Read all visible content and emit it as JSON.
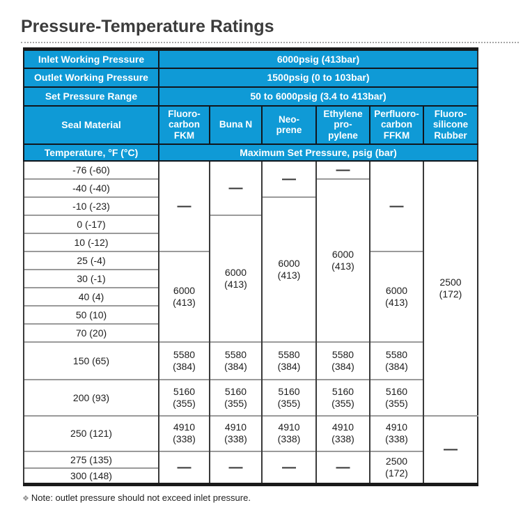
{
  "page": {
    "title": "Pressure-Temperature Ratings",
    "note_icon": "❖",
    "note": "Note: outlet pressure should not exceed inlet pressure."
  },
  "colors": {
    "header_blue": "#0f9ad6",
    "header_text": "#ffffff",
    "header_border": "#11161c",
    "outer_border": "#1a1a1a",
    "grid_vertical": "#3a3a3a",
    "grid_horizontal": "#9a9a9a",
    "title_text": "#3c3c3c",
    "body_text": "#1d1d1d"
  },
  "info_rows": [
    {
      "label": "Inlet Working Pressure",
      "value": "6000psig (413bar)"
    },
    {
      "label": "Outlet Working Pressure",
      "value": "1500psig (0 to 103bar)"
    },
    {
      "label": "Set Pressure Range",
      "value": "50 to 6000psig (3.4 to 413bar)"
    }
  ],
  "seal_header": {
    "label": "Seal Material",
    "materials": [
      "Fluoro-\ncarbon\nFKM",
      "Buna N",
      "Neo-\nprene",
      "Ethylene\npro-\npylene",
      "Perfluoro-\ncarbon\nFFKM",
      "Fluoro-\nsilicone\nRubber"
    ]
  },
  "temp_header": {
    "label": "Temperature, °F (°C)",
    "value": "Maximum Set Pressure, psig (bar)"
  },
  "body": {
    "dash": "—",
    "rows": [
      {
        "temp": "-76 (-60)",
        "cells": [
          {
            "v": "—",
            "rs": 5
          },
          {
            "v": "—",
            "rs": 3
          },
          {
            "v": "—",
            "rs": 2
          },
          {
            "v": "—",
            "rs": 1
          },
          {
            "v": "—",
            "rs": 5
          },
          {
            "v": "2500\n(172)",
            "rs": 12
          }
        ]
      },
      {
        "temp": "-40 (-40)",
        "cells": [
          {
            "v": "6000\n(413)",
            "rs": 9
          }
        ]
      },
      {
        "temp": "-10 (-23)",
        "cells": [
          {
            "v": "6000\n(413)",
            "rs": 8
          }
        ]
      },
      {
        "temp": "0 (-17)",
        "cells": [
          {
            "v": "6000\n(413)",
            "rs": 7
          }
        ]
      },
      {
        "temp": "10 (-12)",
        "cells": []
      },
      {
        "temp": "25 (-4)",
        "cells": [
          {
            "v": "6000\n(413)",
            "rs": 5
          },
          {
            "v": "6000\n(413)",
            "rs": 5
          }
        ]
      },
      {
        "temp": "30 (-1)",
        "cells": []
      },
      {
        "temp": "40 (4)",
        "cells": []
      },
      {
        "temp": "50 (10)",
        "cells": []
      },
      {
        "temp": "70 (20)",
        "cells": []
      },
      {
        "temp": "150 (65)",
        "cells": [
          {
            "v": "5580\n(384)",
            "rs": 1
          },
          {
            "v": "5580\n(384)",
            "rs": 1
          },
          {
            "v": "5580\n(384)",
            "rs": 1
          },
          {
            "v": "5580\n(384)",
            "rs": 1
          },
          {
            "v": "5580\n(384)",
            "rs": 1
          }
        ]
      },
      {
        "temp": "200 (93)",
        "cells": [
          {
            "v": "5160\n(355)",
            "rs": 1
          },
          {
            "v": "5160\n(355)",
            "rs": 1
          },
          {
            "v": "5160\n(355)",
            "rs": 1
          },
          {
            "v": "5160\n(355)",
            "rs": 1
          },
          {
            "v": "5160\n(355)",
            "rs": 1
          }
        ]
      },
      {
        "temp": "250 (121)",
        "cells": [
          {
            "v": "4910\n(338)",
            "rs": 1
          },
          {
            "v": "4910\n(338)",
            "rs": 1
          },
          {
            "v": "4910\n(338)",
            "rs": 1
          },
          {
            "v": "4910\n(338)",
            "rs": 1
          },
          {
            "v": "4910\n(338)",
            "rs": 1
          },
          {
            "v": "—",
            "rs": 3
          }
        ]
      },
      {
        "temp": "275 (135)",
        "cells": [
          {
            "v": "—",
            "rs": 2
          },
          {
            "v": "—",
            "rs": 2
          },
          {
            "v": "—",
            "rs": 2
          },
          {
            "v": "—",
            "rs": 2
          },
          {
            "v": "2500\n(172)",
            "rs": 2
          }
        ]
      },
      {
        "temp": "300 (148)",
        "cells": []
      }
    ]
  }
}
